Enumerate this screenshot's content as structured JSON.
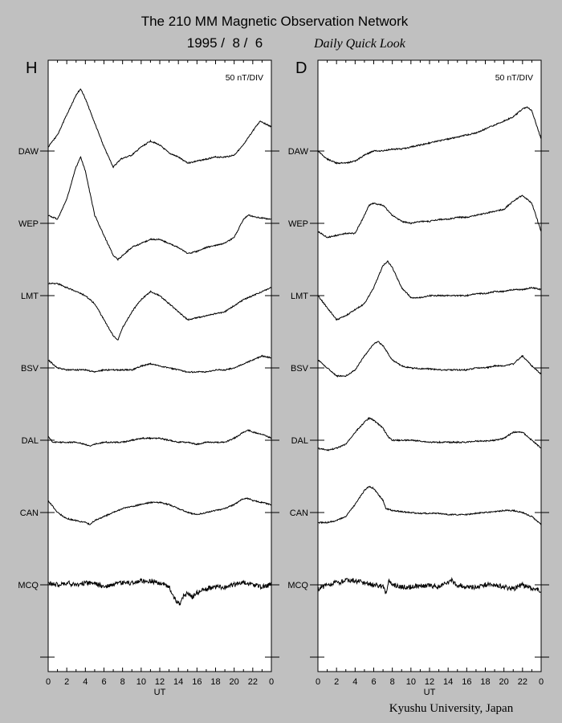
{
  "header": {
    "title": "The 210 MM Magnetic Observation Network",
    "date": "1995 /  8 /  6",
    "subtitle": "Daily Quick Look"
  },
  "footer": {
    "credit": "Kyushu University, Japan"
  },
  "chart_data": [
    {
      "type": "line",
      "panel_label": "H",
      "scale_label": "50 nT/DIV",
      "xlabel": "UT",
      "xlim": [
        0,
        24
      ],
      "x_ticks": [
        "0",
        "2",
        "4",
        "6",
        "8",
        "10",
        "12",
        "14",
        "16",
        "18",
        "20",
        "22",
        "0"
      ],
      "stations": [
        "DAW",
        "WEP",
        "LMT",
        "BSV",
        "DAL",
        "CAN",
        "MCQ"
      ],
      "y_unit": "divisions above station baseline",
      "series": [
        {
          "name": "DAW",
          "x": [
            0,
            1,
            2,
            3,
            3.5,
            4,
            5,
            6,
            7,
            7.8,
            9,
            10,
            11,
            12,
            13,
            14,
            15,
            16,
            17,
            18,
            19,
            20,
            21,
            22,
            22.8,
            24
          ],
          "y": [
            0.1,
            0.4,
            0.9,
            1.4,
            1.55,
            1.3,
            0.7,
            0.1,
            -0.4,
            -0.2,
            -0.1,
            0.1,
            0.25,
            0.15,
            -0.05,
            -0.15,
            -0.3,
            -0.25,
            -0.2,
            -0.15,
            -0.15,
            -0.1,
            0.15,
            0.5,
            0.75,
            0.6
          ]
        },
        {
          "name": "WEP",
          "x": [
            0,
            1,
            2,
            3,
            3.5,
            4,
            5,
            6,
            7,
            7.5,
            9,
            10,
            11,
            12,
            13,
            14,
            15,
            16,
            17,
            18,
            19,
            20,
            21,
            21.5,
            22.5,
            24
          ],
          "y": [
            0.2,
            0.1,
            0.6,
            1.4,
            1.65,
            1.3,
            0.2,
            -0.3,
            -0.8,
            -0.9,
            -0.6,
            -0.5,
            -0.4,
            -0.4,
            -0.5,
            -0.6,
            -0.75,
            -0.7,
            -0.6,
            -0.55,
            -0.5,
            -0.35,
            0.1,
            0.2,
            0.15,
            0.1
          ]
        },
        {
          "name": "LMT",
          "x": [
            0,
            1,
            2,
            3,
            4,
            5,
            6,
            7,
            7.5,
            8,
            9,
            10,
            11,
            12,
            13,
            14,
            15,
            16,
            17,
            18,
            19,
            20,
            21,
            22,
            23,
            24
          ],
          "y": [
            0.3,
            0.3,
            0.2,
            0.1,
            0,
            -0.2,
            -0.6,
            -1.0,
            -1.1,
            -0.8,
            -0.4,
            -0.1,
            0.1,
            0,
            -0.2,
            -0.4,
            -0.6,
            -0.55,
            -0.5,
            -0.45,
            -0.4,
            -0.25,
            -0.1,
            0,
            0.1,
            0.2
          ]
        },
        {
          "name": "BSV",
          "x": [
            0,
            1,
            2,
            3,
            4,
            5,
            6,
            7,
            8,
            9,
            10,
            11,
            12,
            13,
            14,
            15,
            16,
            17,
            18,
            19,
            20,
            21,
            22,
            23,
            24
          ],
          "y": [
            0.2,
            0,
            -0.05,
            -0.05,
            -0.05,
            -0.1,
            -0.05,
            -0.05,
            -0.05,
            -0.05,
            0.05,
            0.1,
            0.05,
            0,
            -0.05,
            -0.1,
            -0.1,
            -0.1,
            -0.05,
            -0.05,
            0,
            0.1,
            0.2,
            0.3,
            0.25
          ]
        },
        {
          "name": "DAL",
          "x": [
            0,
            0.5,
            1,
            2,
            3,
            4,
            4.5,
            5,
            6,
            7,
            8,
            9,
            10,
            11,
            12,
            13,
            14,
            15,
            16,
            17,
            18,
            19,
            20,
            21,
            21.5,
            22,
            23,
            24
          ],
          "y": [
            0.1,
            -0.05,
            -0.05,
            -0.05,
            -0.05,
            -0.1,
            -0.15,
            -0.1,
            -0.05,
            -0.05,
            -0.05,
            0,
            0.05,
            0.05,
            0.05,
            0,
            -0.05,
            -0.05,
            -0.1,
            -0.05,
            -0.05,
            -0.05,
            0.05,
            0.2,
            0.25,
            0.2,
            0.15,
            0.05
          ]
        },
        {
          "name": "CAN",
          "x": [
            0,
            1,
            2,
            3,
            4,
            4.5,
            5,
            6,
            7,
            8,
            9,
            10,
            11,
            12,
            13,
            14,
            15,
            16,
            17,
            18,
            19,
            20,
            21,
            21.5,
            22,
            23,
            24
          ],
          "y": [
            0.3,
            0,
            -0.15,
            -0.2,
            -0.25,
            -0.3,
            -0.2,
            -0.1,
            0,
            0.1,
            0.15,
            0.2,
            0.25,
            0.25,
            0.2,
            0.1,
            0,
            -0.05,
            0,
            0.05,
            0.1,
            0.2,
            0.35,
            0.35,
            0.3,
            0.25,
            0.2
          ]
        },
        {
          "name": "MCQ",
          "x": [
            0,
            1,
            2,
            3,
            4,
            5,
            6,
            7,
            8,
            9,
            10,
            11,
            12,
            13,
            13.5,
            14,
            14.2,
            14.5,
            15,
            15.5,
            16,
            17,
            18,
            19,
            20,
            21,
            22,
            23,
            24
          ],
          "y": [
            0.05,
            0,
            0.05,
            0,
            0.05,
            0.05,
            -0.05,
            0,
            0.05,
            0.05,
            0.1,
            0.1,
            0.05,
            -0.05,
            -0.3,
            -0.45,
            -0.5,
            -0.3,
            -0.2,
            -0.3,
            -0.2,
            -0.1,
            -0.05,
            -0.05,
            0,
            0.05,
            0,
            -0.05,
            0
          ]
        }
      ]
    },
    {
      "type": "line",
      "panel_label": "D",
      "scale_label": "50 nT/DIV",
      "xlabel": "UT",
      "xlim": [
        0,
        24
      ],
      "x_ticks": [
        "0",
        "2",
        "4",
        "6",
        "8",
        "10",
        "12",
        "14",
        "16",
        "18",
        "20",
        "22",
        "0"
      ],
      "stations": [
        "DAW",
        "WEP",
        "LMT",
        "BSV",
        "DAL",
        "CAN",
        "MCQ"
      ],
      "y_unit": "divisions above station baseline",
      "series": [
        {
          "name": "DAW",
          "x": [
            0,
            1,
            2,
            3,
            4,
            5,
            6,
            7,
            8,
            9,
            10,
            11,
            12,
            13,
            14,
            15,
            16,
            17,
            18,
            19,
            20,
            21,
            22,
            22.5,
            23,
            24
          ],
          "y": [
            0,
            -0.2,
            -0.3,
            -0.3,
            -0.25,
            -0.1,
            0,
            0,
            0.05,
            0.05,
            0.1,
            0.15,
            0.2,
            0.25,
            0.3,
            0.35,
            0.4,
            0.45,
            0.55,
            0.65,
            0.75,
            0.85,
            1.05,
            1.1,
            1.0,
            0.3
          ]
        },
        {
          "name": "WEP",
          "x": [
            0,
            1,
            2,
            3,
            4,
            5,
            5.5,
            6,
            7,
            8,
            9,
            10,
            11,
            12,
            13,
            14,
            15,
            16,
            17,
            18,
            19,
            20,
            21,
            22,
            23,
            24
          ],
          "y": [
            -0.2,
            -0.35,
            -0.3,
            -0.25,
            -0.25,
            0.2,
            0.45,
            0.5,
            0.45,
            0.2,
            0.05,
            0,
            0.05,
            0.05,
            0.1,
            0.1,
            0.15,
            0.15,
            0.2,
            0.25,
            0.3,
            0.35,
            0.55,
            0.7,
            0.5,
            -0.2
          ]
        },
        {
          "name": "LMT",
          "x": [
            0,
            1,
            2,
            3,
            4,
            5,
            6,
            7,
            7.5,
            8,
            9,
            10,
            11,
            12,
            13,
            14,
            15,
            16,
            17,
            18,
            19,
            20,
            21,
            22,
            23,
            24
          ],
          "y": [
            0,
            -0.3,
            -0.6,
            -0.5,
            -0.35,
            -0.2,
            0.2,
            0.75,
            0.85,
            0.7,
            0.2,
            -0.05,
            -0.05,
            0,
            0,
            0,
            0,
            0,
            0.05,
            0.05,
            0.1,
            0.1,
            0.15,
            0.15,
            0.2,
            0.15
          ]
        },
        {
          "name": "BSV",
          "x": [
            0,
            1,
            2,
            3,
            4,
            5,
            6,
            6.5,
            7,
            8,
            9,
            10,
            11,
            12,
            13,
            14,
            15,
            16,
            17,
            18,
            19,
            20,
            21,
            22,
            23,
            24
          ],
          "y": [
            0.2,
            0,
            -0.2,
            -0.2,
            -0.05,
            0.3,
            0.6,
            0.65,
            0.55,
            0.2,
            0.05,
            0,
            -0.02,
            -0.02,
            -0.05,
            -0.05,
            -0.05,
            -0.05,
            0,
            0,
            0.05,
            0.05,
            0.1,
            0.3,
            0.05,
            -0.15
          ]
        },
        {
          "name": "DAL",
          "x": [
            0,
            1,
            2,
            3,
            4,
            5,
            5.5,
            6,
            7,
            7.5,
            8,
            9,
            10,
            11,
            12,
            13,
            14,
            15,
            16,
            17,
            18,
            19,
            20,
            21,
            22,
            23,
            24
          ],
          "y": [
            -0.2,
            -0.25,
            -0.2,
            -0.1,
            0.2,
            0.45,
            0.55,
            0.5,
            0.3,
            0.1,
            0,
            0,
            0,
            -0.02,
            -0.05,
            -0.05,
            -0.05,
            -0.05,
            -0.05,
            -0.02,
            -0.02,
            0,
            0.05,
            0.2,
            0.2,
            0,
            -0.2
          ]
        },
        {
          "name": "CAN",
          "x": [
            0,
            1,
            2,
            3,
            4,
            5,
            5.5,
            6,
            7,
            7.3,
            8,
            9,
            10,
            11,
            12,
            13,
            14,
            15,
            16,
            17,
            18,
            19,
            20,
            21,
            22,
            23,
            24
          ],
          "y": [
            -0.25,
            -0.25,
            -0.2,
            -0.1,
            0.2,
            0.55,
            0.65,
            0.6,
            0.3,
            0.1,
            0.05,
            0.02,
            0,
            -0.02,
            -0.02,
            -0.02,
            -0.05,
            -0.05,
            -0.05,
            -0.02,
            0,
            0.02,
            0.05,
            0.05,
            0,
            -0.1,
            -0.3
          ]
        },
        {
          "name": "MCQ",
          "x": [
            0,
            1,
            2,
            3,
            4,
            5,
            6,
            7,
            7.3,
            7.6,
            8,
            9,
            10,
            11,
            12,
            13,
            14,
            14.3,
            14.6,
            15,
            16,
            17,
            18,
            19,
            20,
            21,
            22,
            23,
            24
          ],
          "y": [
            -0.1,
            0,
            0.05,
            0.1,
            0.1,
            0.05,
            0,
            -0.05,
            -0.2,
            0.1,
            0,
            -0.05,
            -0.05,
            -0.02,
            -0.02,
            -0.05,
            0.05,
            0.15,
            0.05,
            0,
            -0.05,
            -0.05,
            0,
            0,
            -0.05,
            -0.1,
            0,
            -0.1,
            -0.15
          ]
        }
      ]
    }
  ]
}
